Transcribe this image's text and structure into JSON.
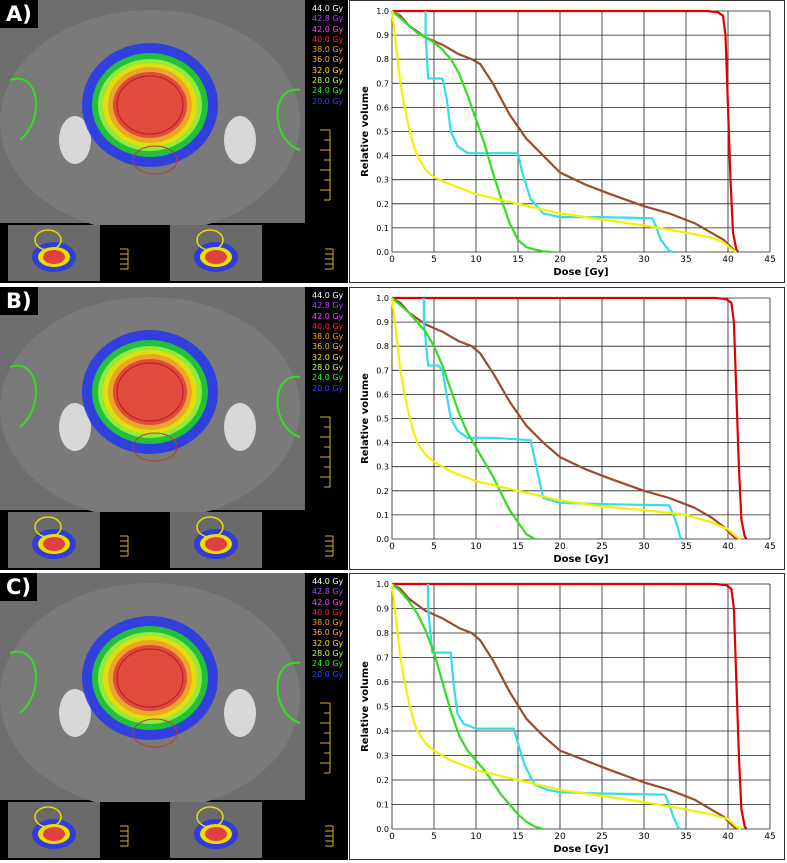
{
  "panels": [
    {
      "label": "A)"
    },
    {
      "label": "B)"
    },
    {
      "label": "C)"
    }
  ],
  "isodose_legend": [
    {
      "text": "44.0 Gy",
      "color": "#ffffff"
    },
    {
      "text": "42.8 Gy",
      "color": "#b040ff"
    },
    {
      "text": "42.0 Gy",
      "color": "#ff40ff"
    },
    {
      "text": "40.0 Gy",
      "color": "#ff2020"
    },
    {
      "text": "38.0 Gy",
      "color": "#ff9a20"
    },
    {
      "text": "36.0 Gy",
      "color": "#ffb060"
    },
    {
      "text": "32.0 Gy",
      "color": "#ffe000"
    },
    {
      "text": "28.0 Gy",
      "color": "#c0ff60"
    },
    {
      "text": "24.0 Gy",
      "color": "#20ff20"
    },
    {
      "text": "20.0 Gy",
      "color": "#3040ff"
    }
  ],
  "chart_data": [
    {
      "type": "line",
      "panel": "A)",
      "xlabel": "Dose [Gy]",
      "ylabel": "Relative volume",
      "xlim": [
        0,
        45
      ],
      "ylim": [
        0,
        1.0
      ],
      "xticks": [
        0,
        5,
        10,
        15,
        20,
        25,
        30,
        35,
        40,
        45
      ],
      "yticks": [
        0.0,
        0.1,
        0.2,
        0.3,
        0.4,
        0.5,
        0.6,
        0.7,
        0.8,
        0.9,
        1.0
      ],
      "grid": true,
      "series": [
        {
          "color": "#e00000",
          "x": [
            0,
            37.5,
            38.8,
            39.4,
            39.7,
            40.0,
            40.3,
            40.6,
            41.0,
            41.2
          ],
          "y": [
            1.0,
            1.0,
            0.995,
            0.98,
            0.9,
            0.6,
            0.3,
            0.08,
            0.01,
            0
          ]
        },
        {
          "color": "#9b4a2c",
          "x": [
            0,
            1,
            2,
            4,
            6,
            8,
            9.5,
            10.5,
            12,
            14,
            16,
            18,
            20,
            23,
            26,
            30,
            33,
            36,
            38,
            39.5,
            40.5,
            41
          ],
          "y": [
            1.0,
            0.98,
            0.94,
            0.89,
            0.86,
            0.82,
            0.8,
            0.78,
            0.7,
            0.57,
            0.47,
            0.4,
            0.33,
            0.28,
            0.24,
            0.19,
            0.16,
            0.12,
            0.08,
            0.05,
            0.015,
            0
          ]
        },
        {
          "color": "#33dcee",
          "x": [
            4,
            4,
            4.3,
            4.8,
            5.3,
            6,
            6.5,
            7,
            7.8,
            9,
            12,
            15,
            15.5,
            16.5,
            18,
            20,
            25,
            31,
            31.5,
            32,
            33,
            33.5
          ],
          "y": [
            1.0,
            0.9,
            0.72,
            0.72,
            0.72,
            0.72,
            0.64,
            0.5,
            0.44,
            0.41,
            0.41,
            0.41,
            0.33,
            0.22,
            0.16,
            0.145,
            0.145,
            0.14,
            0.1,
            0.05,
            0.005,
            0
          ]
        },
        {
          "color": "#33dd22",
          "x": [
            0,
            1,
            2,
            3,
            4,
            5,
            6,
            7,
            8,
            9,
            10,
            11,
            12,
            13,
            14,
            15,
            16,
            17,
            18,
            19
          ],
          "y": [
            1.0,
            0.97,
            0.94,
            0.91,
            0.89,
            0.87,
            0.84,
            0.8,
            0.74,
            0.65,
            0.55,
            0.45,
            0.33,
            0.22,
            0.12,
            0.05,
            0.02,
            0.01,
            0.003,
            0
          ]
        },
        {
          "color": "#f2f200",
          "x": [
            0,
            0.5,
            1,
            1.5,
            2,
            2.5,
            3,
            4,
            5,
            7,
            10,
            15,
            20,
            25,
            30,
            35,
            38,
            39.5,
            40.5,
            41
          ],
          "y": [
            1.0,
            0.85,
            0.7,
            0.6,
            0.52,
            0.45,
            0.4,
            0.34,
            0.31,
            0.28,
            0.24,
            0.2,
            0.16,
            0.135,
            0.11,
            0.08,
            0.06,
            0.04,
            0.01,
            0
          ]
        }
      ]
    },
    {
      "type": "line",
      "panel": "B)",
      "xlabel": "Dose [Gy]",
      "ylabel": "Relative volume",
      "xlim": [
        0,
        45
      ],
      "ylim": [
        0,
        1.0
      ],
      "xticks": [
        0,
        5,
        10,
        15,
        20,
        25,
        30,
        35,
        40,
        45
      ],
      "yticks": [
        0.0,
        0.1,
        0.2,
        0.3,
        0.4,
        0.5,
        0.6,
        0.7,
        0.8,
        0.9,
        1.0
      ],
      "grid": true,
      "series": [
        {
          "color": "#e00000",
          "x": [
            0,
            38.5,
            39.8,
            40.4,
            40.7,
            41.0,
            41.3,
            41.6,
            42.0,
            42.2
          ],
          "y": [
            1.0,
            1.0,
            0.995,
            0.98,
            0.9,
            0.6,
            0.3,
            0.08,
            0.01,
            0
          ]
        },
        {
          "color": "#9b4a2c",
          "x": [
            0,
            1,
            2,
            4,
            6,
            8,
            9.5,
            10.5,
            12,
            14,
            16,
            18,
            20,
            23,
            26,
            30,
            33,
            36,
            38,
            39.5,
            40.5,
            41
          ],
          "y": [
            1.0,
            0.98,
            0.94,
            0.89,
            0.86,
            0.82,
            0.8,
            0.77,
            0.69,
            0.57,
            0.47,
            0.4,
            0.34,
            0.29,
            0.25,
            0.2,
            0.17,
            0.13,
            0.09,
            0.05,
            0.015,
            0
          ]
        },
        {
          "color": "#33dcee",
          "x": [
            3.8,
            3.8,
            4.3,
            4.8,
            5.5,
            6,
            6.5,
            7,
            7.8,
            9,
            12,
            16.5,
            17,
            18,
            20,
            25,
            33,
            33.5,
            34,
            34.3,
            34.5
          ],
          "y": [
            1.0,
            0.9,
            0.72,
            0.72,
            0.72,
            0.7,
            0.6,
            0.5,
            0.45,
            0.42,
            0.42,
            0.41,
            0.33,
            0.17,
            0.15,
            0.145,
            0.14,
            0.1,
            0.05,
            0.01,
            0
          ]
        },
        {
          "color": "#33dd22",
          "x": [
            0,
            1,
            2,
            3,
            4,
            5,
            6,
            7,
            8,
            9,
            10,
            11,
            12,
            13,
            14,
            15,
            16,
            17
          ],
          "y": [
            1.0,
            0.97,
            0.94,
            0.9,
            0.86,
            0.8,
            0.72,
            0.62,
            0.52,
            0.44,
            0.38,
            0.32,
            0.26,
            0.19,
            0.12,
            0.07,
            0.02,
            0
          ]
        },
        {
          "color": "#f2f200",
          "x": [
            0,
            0.5,
            1,
            1.5,
            2,
            2.5,
            3,
            4,
            5,
            7,
            10,
            15,
            20,
            25,
            30,
            35,
            38,
            40,
            41,
            41.5
          ],
          "y": [
            1.0,
            0.85,
            0.7,
            0.6,
            0.52,
            0.45,
            0.4,
            0.35,
            0.32,
            0.28,
            0.24,
            0.2,
            0.16,
            0.135,
            0.12,
            0.1,
            0.07,
            0.04,
            0.01,
            0
          ]
        }
      ]
    },
    {
      "type": "line",
      "panel": "C)",
      "xlabel": "Dose [Gy]",
      "ylabel": "Relative volume",
      "xlim": [
        0,
        45
      ],
      "ylim": [
        0,
        1.0
      ],
      "xticks": [
        0,
        5,
        10,
        15,
        20,
        25,
        30,
        35,
        40,
        45
      ],
      "yticks": [
        0.0,
        0.1,
        0.2,
        0.3,
        0.4,
        0.5,
        0.6,
        0.7,
        0.8,
        0.9,
        1.0
      ],
      "grid": true,
      "series": [
        {
          "color": "#e00000",
          "x": [
            0,
            38.5,
            39.8,
            40.4,
            40.7,
            41.0,
            41.3,
            41.6,
            42.0,
            42.2
          ],
          "y": [
            1.0,
            1.0,
            0.995,
            0.98,
            0.9,
            0.6,
            0.3,
            0.08,
            0.01,
            0
          ]
        },
        {
          "color": "#9b4a2c",
          "x": [
            0,
            1,
            2,
            4,
            6,
            8,
            9.5,
            10.5,
            12,
            14,
            16,
            18,
            20,
            23,
            26,
            30,
            33,
            36,
            38,
            39.5,
            40.5,
            41
          ],
          "y": [
            1.0,
            0.98,
            0.94,
            0.89,
            0.86,
            0.82,
            0.8,
            0.77,
            0.69,
            0.56,
            0.45,
            0.38,
            0.32,
            0.28,
            0.24,
            0.19,
            0.16,
            0.12,
            0.08,
            0.05,
            0.015,
            0
          ]
        },
        {
          "color": "#33dcee",
          "x": [
            4.3,
            4.3,
            4.8,
            5.2,
            6,
            7,
            7.3,
            7.8,
            8.5,
            10,
            12,
            14.5,
            15,
            15.8,
            17,
            18.5,
            20,
            25,
            32.5,
            33,
            33.5,
            34,
            34.3
          ],
          "y": [
            1.0,
            0.9,
            0.72,
            0.72,
            0.72,
            0.72,
            0.6,
            0.47,
            0.43,
            0.41,
            0.41,
            0.41,
            0.35,
            0.26,
            0.18,
            0.16,
            0.15,
            0.145,
            0.14,
            0.1,
            0.05,
            0.01,
            0
          ]
        },
        {
          "color": "#33dd22",
          "x": [
            0,
            1,
            2,
            3,
            4,
            5,
            6,
            7,
            8,
            9,
            10,
            11,
            12,
            13,
            14,
            15,
            16,
            17,
            18
          ],
          "y": [
            1.0,
            0.97,
            0.93,
            0.88,
            0.81,
            0.72,
            0.6,
            0.48,
            0.38,
            0.32,
            0.28,
            0.24,
            0.19,
            0.14,
            0.1,
            0.06,
            0.03,
            0.01,
            0
          ]
        },
        {
          "color": "#f2f200",
          "x": [
            0,
            0.5,
            1,
            1.5,
            2,
            2.5,
            3,
            4,
            5,
            7,
            10,
            15,
            20,
            25,
            30,
            35,
            38,
            40,
            41,
            41.5
          ],
          "y": [
            1.0,
            0.85,
            0.7,
            0.6,
            0.52,
            0.45,
            0.4,
            0.35,
            0.32,
            0.28,
            0.24,
            0.2,
            0.16,
            0.135,
            0.11,
            0.08,
            0.06,
            0.04,
            0.01,
            0
          ]
        }
      ]
    }
  ]
}
